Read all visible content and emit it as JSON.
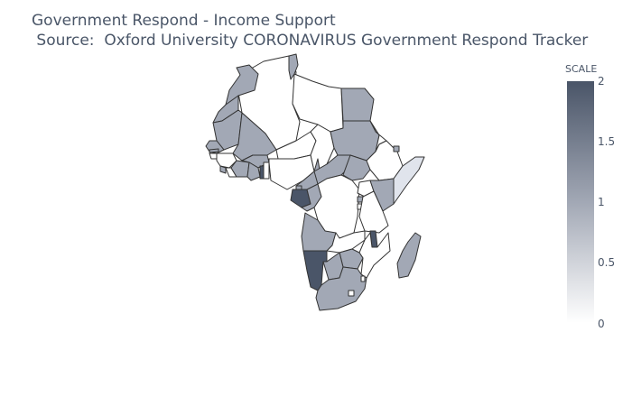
{
  "figure": {
    "title_line1": "Government Respond - Income Support",
    "title_line2": " Source:  Oxford University CORONAVIRUS Government Respond Tracker"
  },
  "colorbar": {
    "title": "SCALE",
    "ticks": [
      "2",
      "1.5",
      "1",
      "0.5",
      "0"
    ],
    "colors": {
      "max": "#4a5568",
      "mid": "#a2a8b5",
      "min": "#ffffff"
    }
  },
  "map": {
    "region": "Africa",
    "colors": {
      "level0": "#ffffff",
      "level_low": "#e0e4ec",
      "level1": "#a2a8b5",
      "level2": "#4a5568",
      "border": "#333333"
    },
    "countries": [
      {
        "name": "Morocco",
        "value": 1
      },
      {
        "name": "Western Sahara",
        "value": 1
      },
      {
        "name": "Algeria",
        "value": 0
      },
      {
        "name": "Tunisia",
        "value": 1
      },
      {
        "name": "Libya",
        "value": 0
      },
      {
        "name": "Egypt",
        "value": 1
      },
      {
        "name": "Mauritania",
        "value": 1
      },
      {
        "name": "Mali",
        "value": 1
      },
      {
        "name": "Niger",
        "value": 0
      },
      {
        "name": "Chad",
        "value": 0
      },
      {
        "name": "Sudan",
        "value": 1
      },
      {
        "name": "Senegal",
        "value": 1
      },
      {
        "name": "Gambia",
        "value": 1
      },
      {
        "name": "Guinea-Bissau",
        "value": 0
      },
      {
        "name": "Guinea",
        "value": 0
      },
      {
        "name": "Sierra Leone",
        "value": 1
      },
      {
        "name": "Liberia",
        "value": 0
      },
      {
        "name": "Cote d'Ivoire",
        "value": 1
      },
      {
        "name": "Burkina Faso",
        "value": 1
      },
      {
        "name": "Ghana",
        "value": 1
      },
      {
        "name": "Togo",
        "value": 2
      },
      {
        "name": "Benin",
        "value": 0
      },
      {
        "name": "Nigeria",
        "value": 0
      },
      {
        "name": "Cameroon",
        "value": 1
      },
      {
        "name": "Central African Republic",
        "value": 1
      },
      {
        "name": "South Sudan",
        "value": 1
      },
      {
        "name": "Ethiopia",
        "value": 0
      },
      {
        "name": "Eritrea",
        "value": 0
      },
      {
        "name": "Djibouti",
        "value": 1
      },
      {
        "name": "Somalia",
        "value": 0.25
      },
      {
        "name": "Equatorial Guinea",
        "value": 1
      },
      {
        "name": "Gabon",
        "value": 2
      },
      {
        "name": "Republic of the Congo",
        "value": 1
      },
      {
        "name": "DR Congo",
        "value": 0
      },
      {
        "name": "Uganda",
        "value": 0
      },
      {
        "name": "Kenya",
        "value": 1
      },
      {
        "name": "Rwanda",
        "value": 1
      },
      {
        "name": "Burundi",
        "value": 0
      },
      {
        "name": "Tanzania",
        "value": 0
      },
      {
        "name": "Angola",
        "value": 1
      },
      {
        "name": "Zambia",
        "value": 0
      },
      {
        "name": "Malawi",
        "value": 2
      },
      {
        "name": "Mozambique",
        "value": 0
      },
      {
        "name": "Zimbabwe",
        "value": 1
      },
      {
        "name": "Namibia",
        "value": 2
      },
      {
        "name": "Botswana",
        "value": 1
      },
      {
        "name": "South Africa",
        "value": 1
      },
      {
        "name": "Lesotho",
        "value": 0
      },
      {
        "name": "Eswatini",
        "value": 0
      },
      {
        "name": "Madagascar",
        "value": 1
      }
    ]
  }
}
